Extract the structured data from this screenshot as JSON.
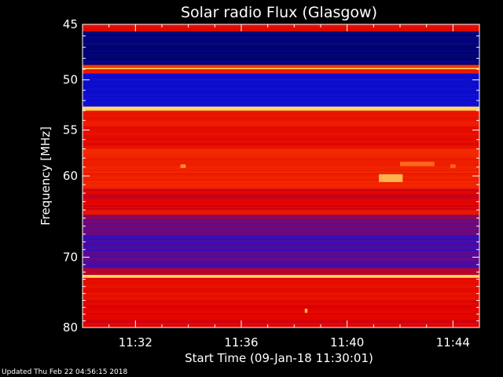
{
  "chart_data": {
    "type": "heatmap",
    "title": "Solar radio Flux (Glasgow)",
    "xlabel": "Start Time (09-Jan-18 11:30:01)",
    "ylabel": "Frequency [MHz]",
    "x_ticks": [
      "11:32",
      "11:36",
      "11:40",
      "11:44"
    ],
    "x_tick_minutes": [
      2,
      6,
      10,
      14
    ],
    "xlim_minutes": [
      0,
      15
    ],
    "y_ticks": [
      45,
      50,
      55,
      60,
      70,
      80
    ],
    "ylim": [
      45,
      80
    ],
    "y_scale": "log",
    "colormap": [
      "#000060",
      "#1010e0",
      "#e00000",
      "#ff4000",
      "#ffff80"
    ],
    "bands": [
      {
        "f_low": 45.0,
        "f_high": 45.6,
        "level": 0.55
      },
      {
        "f_low": 45.6,
        "f_high": 48.6,
        "level": 0.05
      },
      {
        "f_low": 48.6,
        "f_high": 48.9,
        "level": 0.7
      },
      {
        "f_low": 48.9,
        "f_high": 49.0,
        "level": 0.98
      },
      {
        "f_low": 49.0,
        "f_high": 49.4,
        "level": 0.6
      },
      {
        "f_low": 49.4,
        "f_high": 52.6,
        "level": 0.22
      },
      {
        "f_low": 52.6,
        "f_high": 53.0,
        "level": 0.95
      },
      {
        "f_low": 53.0,
        "f_high": 54.5,
        "level": 0.6
      },
      {
        "f_low": 54.5,
        "f_high": 57.0,
        "level": 0.55
      },
      {
        "f_low": 57.0,
        "f_high": 61.5,
        "level": 0.63
      },
      {
        "f_low": 61.5,
        "f_high": 64.0,
        "level": 0.5
      },
      {
        "f_low": 64.0,
        "f_high": 64.6,
        "level": 0.62
      },
      {
        "f_low": 64.6,
        "f_high": 67.0,
        "level": 0.38
      },
      {
        "f_low": 67.0,
        "f_high": 71.5,
        "level": 0.33
      },
      {
        "f_low": 71.5,
        "f_high": 72.4,
        "level": 0.48
      },
      {
        "f_low": 72.4,
        "f_high": 72.8,
        "level": 0.95
      },
      {
        "f_low": 72.8,
        "f_high": 76.0,
        "level": 0.55
      },
      {
        "f_low": 76.0,
        "f_high": 80.0,
        "level": 0.5
      }
    ],
    "bursts": [
      {
        "t_start": 11.2,
        "t_end": 12.1,
        "f_low": 59.8,
        "f_high": 60.7,
        "level": 0.9
      },
      {
        "t_start": 12.0,
        "t_end": 13.3,
        "f_low": 58.4,
        "f_high": 58.9,
        "level": 0.8
      },
      {
        "t_start": 3.7,
        "t_end": 3.9,
        "f_low": 58.7,
        "f_high": 59.1,
        "level": 0.85
      },
      {
        "t_start": 13.9,
        "t_end": 14.1,
        "f_low": 58.7,
        "f_high": 59.1,
        "level": 0.8
      },
      {
        "t_start": 8.4,
        "t_end": 8.5,
        "f_low": 77.2,
        "f_high": 77.8,
        "level": 0.9
      }
    ]
  },
  "footer": {
    "updated_text": "Updated Thu Feb 22 04:56:15 2018"
  }
}
